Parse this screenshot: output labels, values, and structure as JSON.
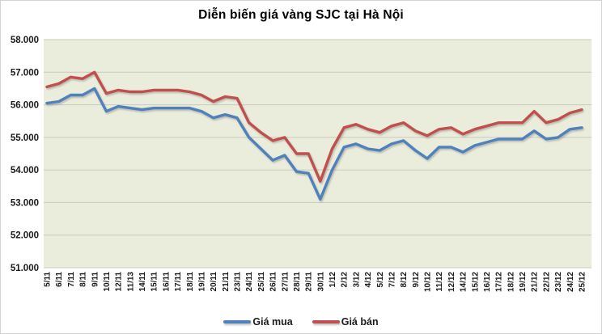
{
  "chart_data": {
    "type": "line",
    "title": "Diễn biến giá vàng SJC tại Hà Nội",
    "categories": [
      "5/11",
      "6/11",
      "7/11",
      "8/11",
      "9/11",
      "10/11",
      "12/11",
      "11/13",
      "14/11",
      "15/11",
      "16/11",
      "17/11",
      "18/11",
      "19/11",
      "20/11",
      "21/11",
      "23/11",
      "24/11",
      "25/11",
      "26/11",
      "27/11",
      "28/11",
      "29/11",
      "30/11",
      "1/12",
      "2/12",
      "3/12",
      "4/12",
      "5/12",
      "7/12",
      "8/12",
      "9/12",
      "10/12",
      "11/12",
      "12/12",
      "14/12",
      "15/12",
      "16/12",
      "17/12",
      "18/12",
      "19/12",
      "21/12",
      "22/12",
      "23/12",
      "24/12",
      "25/12"
    ],
    "series": [
      {
        "name": "Giá mua",
        "color": "#4f81bd",
        "values": [
          56050,
          56100,
          56300,
          56300,
          56500,
          55800,
          55950,
          55900,
          55850,
          55900,
          55900,
          55900,
          55900,
          55800,
          55600,
          55700,
          55600,
          55000,
          54650,
          54300,
          54450,
          53950,
          53900,
          53100,
          54000,
          54700,
          54800,
          54650,
          54600,
          54800,
          54900,
          54600,
          54350,
          54700,
          54700,
          54550,
          54750,
          54850,
          54950,
          54950,
          54950,
          55200,
          54950,
          55000,
          55250,
          55300
        ]
      },
      {
        "name": "Giá bán",
        "color": "#c0504d",
        "values": [
          56550,
          56650,
          56850,
          56800,
          57000,
          56350,
          56450,
          56400,
          56400,
          56450,
          56450,
          56450,
          56400,
          56300,
          56100,
          56250,
          56200,
          55450,
          55150,
          54900,
          55000,
          54500,
          54500,
          53650,
          54650,
          55300,
          55400,
          55250,
          55150,
          55350,
          55450,
          55200,
          55050,
          55250,
          55300,
          55100,
          55250,
          55350,
          55450,
          55450,
          55450,
          55800,
          55450,
          55550,
          55750,
          55850
        ]
      }
    ],
    "y_axis": {
      "min": 51000,
      "max": 58000,
      "step": 1000,
      "tick_labels": [
        "58.000",
        "57.000",
        "56.000",
        "55.000",
        "54.000",
        "53.000",
        "52.000",
        "51.000"
      ]
    },
    "xlabel": "",
    "ylabel": "",
    "grid": true,
    "legend_position": "bottom",
    "plot_bg": "#ebeddc",
    "gridline_color": "#c8cabb"
  }
}
